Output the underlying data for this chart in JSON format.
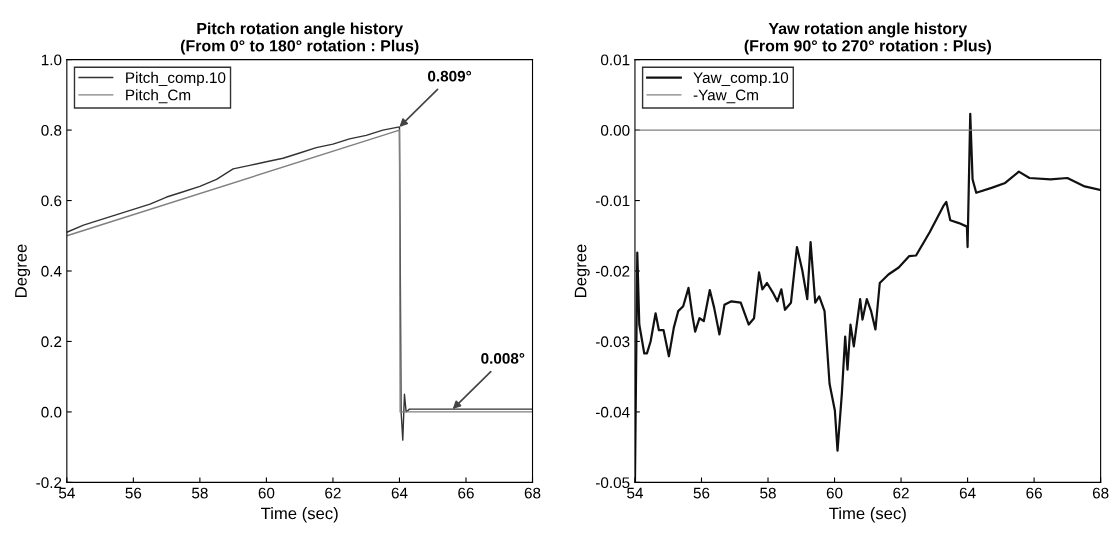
{
  "chart_data": [
    {
      "type": "line",
      "title": "Pitch rotation angle history\n(From 0° to 180° rotation : Plus)",
      "xlabel": "Time (sec)",
      "ylabel": "Degree",
      "series": [
        {
          "name": "Pitch_comp.10",
          "color": "#333333",
          "x": [
            54,
            54.5,
            55,
            55.5,
            56,
            56.5,
            57,
            57.5,
            58,
            58.5,
            59,
            59.5,
            60,
            60.5,
            61,
            61.5,
            62,
            62.5,
            63,
            63.5,
            64,
            64.05,
            64.1,
            64.15,
            64.2,
            64.3,
            68
          ],
          "values": [
            0.51,
            0.53,
            0.545,
            0.56,
            0.575,
            0.59,
            0.61,
            0.625,
            0.64,
            0.66,
            0.69,
            0.7,
            0.71,
            0.72,
            0.735,
            0.75,
            0.76,
            0.775,
            0.785,
            0.8,
            0.809,
            0.0,
            -0.08,
            0.05,
            0.0,
            0.008,
            0.008
          ]
        },
        {
          "name": "Pitch_Cm",
          "color": "#808080",
          "x": [
            54,
            64,
            64.02,
            68
          ],
          "values": [
            0.5,
            0.8,
            0.0,
            0.0
          ]
        }
      ],
      "annotations": [
        {
          "text": "0.809°",
          "x": 64.0,
          "y": 0.809
        },
        {
          "text": "0.008°",
          "x": 65.6,
          "y": 0.008
        }
      ],
      "xlim": [
        54,
        68
      ],
      "xticks": [
        54,
        56,
        58,
        60,
        62,
        64,
        66,
        68
      ],
      "ylim": [
        -0.2,
        1.0
      ],
      "yticks": [
        {
          "value": -0.2,
          "label": "-0.2"
        },
        {
          "value": 0.0,
          "label": "0.0"
        },
        {
          "value": 0.2,
          "label": "0.2"
        },
        {
          "value": 0.4,
          "label": "0.4"
        },
        {
          "value": 0.6,
          "label": "0.6"
        },
        {
          "value": 0.8,
          "label": "0.8"
        },
        {
          "value": 1.0,
          "label": "1.0"
        }
      ],
      "legend": "top left",
      "grid": false
    },
    {
      "type": "line",
      "title": "Yaw rotation angle history\n(From 90° to 270° rotation : Plus)",
      "xlabel": "Time (sec)",
      "ylabel": "Degree",
      "series": [
        {
          "name": "Yaw_comp.10",
          "color": "#111111",
          "x": [
            54.0,
            54.07,
            54.13,
            54.28,
            54.36,
            54.47,
            54.62,
            54.72,
            54.86,
            55.02,
            55.17,
            55.3,
            55.45,
            55.61,
            55.73,
            55.81,
            55.94,
            56.07,
            56.25,
            56.38,
            56.54,
            56.69,
            56.9,
            57.18,
            57.42,
            57.58,
            57.73,
            57.83,
            57.97,
            58.15,
            58.28,
            58.4,
            58.51,
            58.69,
            58.87,
            59.03,
            59.18,
            59.28,
            59.42,
            59.54,
            59.7,
            59.85,
            60.01,
            60.09,
            60.22,
            60.32,
            60.39,
            60.48,
            60.58,
            60.77,
            60.84,
            60.97,
            61.1,
            61.23,
            61.36,
            61.62,
            61.93,
            62.24,
            62.45,
            62.86,
            63.27,
            63.36,
            63.48,
            63.74,
            63.98,
            64.0,
            64.08,
            64.15,
            64.26,
            64.72,
            65.13,
            65.54,
            65.86,
            66.49,
            67.0,
            67.52,
            68.0
          ],
          "values": [
            -0.05,
            -0.0174,
            -0.0276,
            -0.0317,
            -0.0317,
            -0.03,
            -0.026,
            -0.0284,
            -0.0284,
            -0.0321,
            -0.028,
            -0.0257,
            -0.025,
            -0.0224,
            -0.0264,
            -0.0286,
            -0.0267,
            -0.0271,
            -0.0227,
            -0.0252,
            -0.029,
            -0.0248,
            -0.0243,
            -0.0245,
            -0.0276,
            -0.0267,
            -0.0202,
            -0.0226,
            -0.0217,
            -0.0231,
            -0.0243,
            -0.0226,
            -0.0255,
            -0.0245,
            -0.0166,
            -0.0199,
            -0.024,
            -0.0159,
            -0.0245,
            -0.0236,
            -0.0257,
            -0.036,
            -0.0398,
            -0.0455,
            -0.0374,
            -0.0293,
            -0.034,
            -0.0276,
            -0.0307,
            -0.024,
            -0.0269,
            -0.024,
            -0.0257,
            -0.0283,
            -0.0217,
            -0.0205,
            -0.0195,
            -0.0179,
            -0.0178,
            -0.0145,
            -0.0108,
            -0.0102,
            -0.0128,
            -0.0132,
            -0.0137,
            -0.0166,
            0.0023,
            -0.007,
            -0.0089,
            -0.0082,
            -0.0075,
            -0.0059,
            -0.0068,
            -0.007,
            -0.0068,
            -0.008,
            -0.0085
          ]
        },
        {
          "name": "-Yaw_Cm",
          "color": "#808080",
          "x": [
            54,
            68
          ],
          "values": [
            0.0,
            0.0
          ]
        }
      ],
      "xlim": [
        54,
        68
      ],
      "xticks": [
        54,
        56,
        58,
        60,
        62,
        64,
        66,
        68
      ],
      "ylim": [
        -0.05,
        0.01
      ],
      "yticks": [
        {
          "value": -0.05,
          "label": "-0.05"
        },
        {
          "value": -0.04,
          "label": "-0.04"
        },
        {
          "value": -0.03,
          "label": "-0.03"
        },
        {
          "value": -0.02,
          "label": "-0.02"
        },
        {
          "value": -0.01,
          "label": "-0.01"
        },
        {
          "value": 0.0,
          "label": "0.00"
        },
        {
          "value": 0.01,
          "label": "0.01"
        }
      ],
      "legend": "top left",
      "grid": false
    }
  ]
}
